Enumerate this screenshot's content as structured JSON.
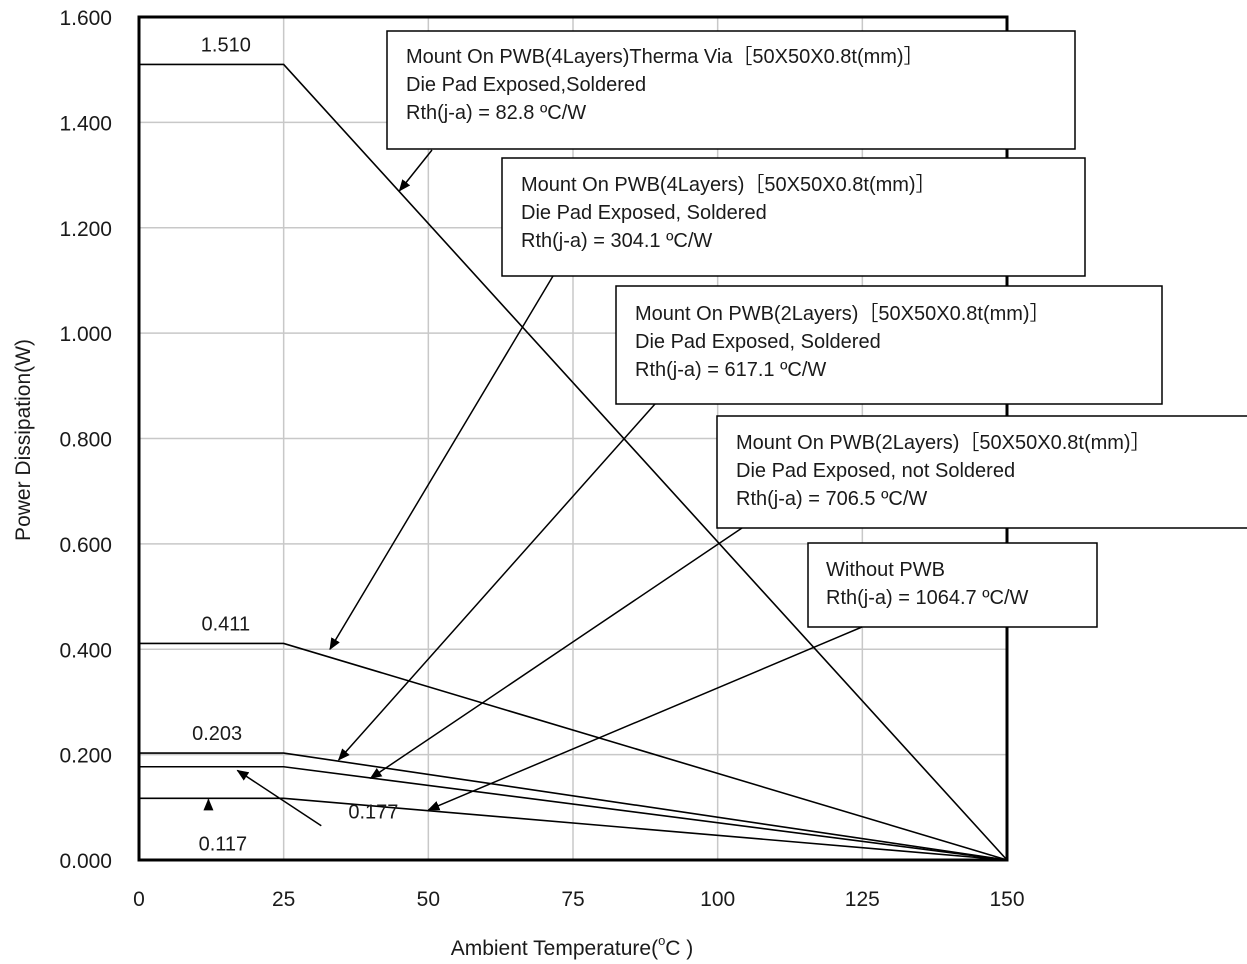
{
  "chart_data": {
    "type": "line",
    "xlabel": "Ambient Temperature(",
    "xlabel_unit_super": "o",
    "xlabel_unit_tail": "C )",
    "ylabel": "Power Dissipation(W)",
    "xlim": [
      0,
      150
    ],
    "ylim": [
      0,
      1.6
    ],
    "x_ticks": [
      0,
      25,
      50,
      75,
      100,
      125,
      150
    ],
    "x_tick_labels": [
      "0",
      "25",
      "50",
      "75",
      "100",
      "125",
      "150"
    ],
    "y_ticks": [
      0,
      0.2,
      0.4,
      0.6,
      0.8,
      1.0,
      1.2,
      1.4,
      1.6
    ],
    "y_tick_labels": [
      "0.000",
      "0.200",
      "0.400",
      "0.600",
      "0.800",
      "1.000",
      "1.200",
      "1.400",
      "1.600"
    ],
    "grid": true,
    "series": [
      {
        "x": [
          0,
          25,
          150
        ],
        "y": [
          1.51,
          1.51,
          0
        ]
      },
      {
        "x": [
          0,
          25,
          150
        ],
        "y": [
          0.411,
          0.411,
          0
        ]
      },
      {
        "x": [
          0,
          25,
          150
        ],
        "y": [
          0.203,
          0.203,
          0
        ]
      },
      {
        "x": [
          0,
          25,
          150
        ],
        "y": [
          0.177,
          0.177,
          0
        ]
      },
      {
        "x": [
          0,
          25,
          150
        ],
        "y": [
          0.117,
          0.117,
          0
        ]
      }
    ],
    "data_labels": [
      {
        "text": "1.510",
        "x": 15,
        "y": 1.51
      },
      {
        "text": "0.411",
        "x": 15,
        "y": 0.411
      },
      {
        "text": "0.203",
        "x": 13.5,
        "y": 0.203
      },
      {
        "text": "0.117",
        "x": 14.5,
        "y": 0.117
      },
      {
        "text": "0.177",
        "x": 40.5,
        "y": 0.177
      }
    ],
    "annotations": [
      {
        "lines": [
          "Mount On PWB(4Layers)Therma Via［50X50X0.8t(mm)］",
          "Die Pad Exposed,Soldered",
          "Rth(j-a) = 82.8 ºC/W"
        ],
        "target": [
          45,
          1.27
        ]
      },
      {
        "lines": [
          "Mount On PWB(4Layers)［50X50X0.8t(mm)］",
          "Die Pad Exposed,  Soldered",
          "Rth(j-a) = 304.1 ºC/W"
        ],
        "target": [
          33,
          0.4
        ]
      },
      {
        "lines": [
          "Mount On PWB(2Layers)［50X50X0.8t(mm)］",
          "Die Pad Exposed,  Soldered",
          "Rth(j-a) = 617.1 ºC/W"
        ],
        "target": [
          34.5,
          0.19
        ]
      },
      {
        "lines": [
          "Mount On PWB(2Layers)［50X50X0.8t(mm)］",
          "Die Pad Exposed, not Soldered",
          "Rth(j-a) = 706.5 ºC/W"
        ],
        "target": [
          40,
          0.155
        ]
      },
      {
        "lines": [
          "Without PWB",
          "Rth(j-a) = 1064.7 ºC/W"
        ],
        "target": [
          50,
          0.095
        ]
      }
    ],
    "pointer_arrows": [
      {
        "from": [
          12,
          0.105
        ],
        "to": [
          12,
          0.115
        ]
      },
      {
        "from": [
          31.5,
          0.065
        ],
        "to": [
          17,
          0.17
        ]
      }
    ]
  }
}
